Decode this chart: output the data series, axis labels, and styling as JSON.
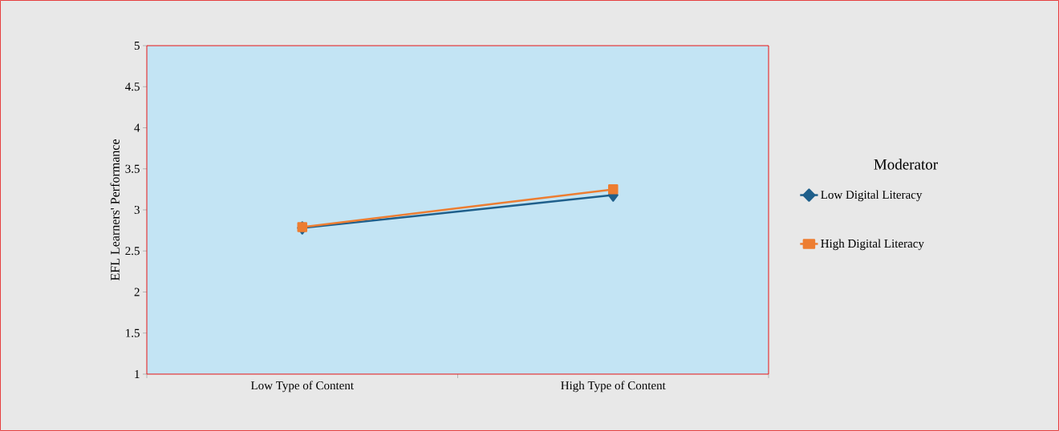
{
  "chart_data": {
    "type": "line",
    "ylabel": "EFL Learners' Performance",
    "legend_title": "Moderator",
    "categories": [
      "Low Type of Content",
      "High Type of Content"
    ],
    "series": [
      {
        "name": "Low Digital Literacy",
        "color": "#1f5f8b",
        "marker": "diamond",
        "values": [
          2.78,
          3.18
        ]
      },
      {
        "name": "High Digital Literacy",
        "color": "#ed7d31",
        "marker": "square",
        "values": [
          2.79,
          3.25
        ]
      }
    ],
    "ylim": [
      1,
      5
    ],
    "yticks": [
      1,
      1.5,
      2,
      2.5,
      3,
      3.5,
      4,
      4.5,
      5
    ],
    "legend": "right",
    "line_style": "solid"
  }
}
